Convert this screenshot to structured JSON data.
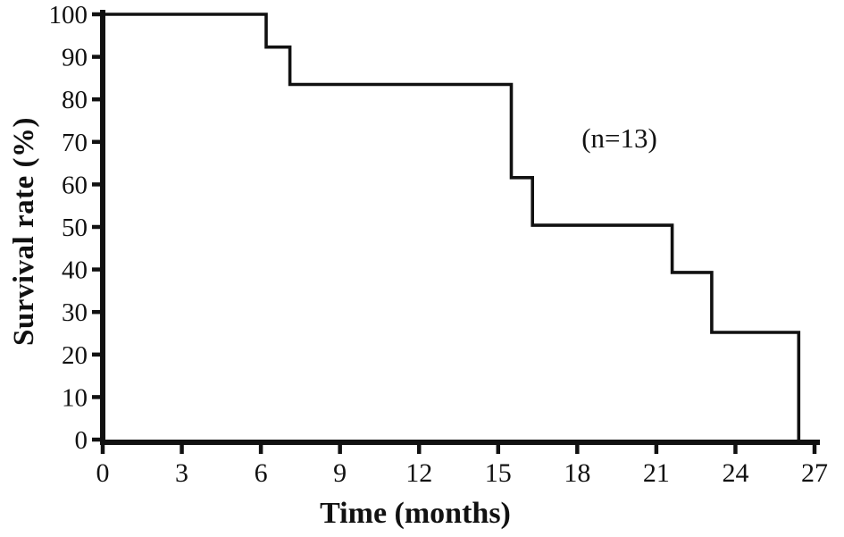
{
  "chart_data": {
    "type": "line",
    "subtype": "kaplan-meier-step-curve",
    "title": "",
    "xlabel": "Time (months)",
    "ylabel": "Survival rate (%)",
    "xlim": [
      0,
      27
    ],
    "ylim": [
      0,
      100
    ],
    "x_ticks": [
      0,
      3,
      6,
      9,
      12,
      15,
      18,
      21,
      24,
      27
    ],
    "y_ticks": [
      0,
      10,
      20,
      30,
      40,
      50,
      60,
      70,
      80,
      90,
      100
    ],
    "grid": false,
    "legend": false,
    "annotation": {
      "text": "(n=13)",
      "x": 19.6,
      "y": 71
    },
    "sample_size": 13,
    "series": [
      {
        "name": "Survival rate",
        "color": "#111111",
        "step_points": [
          [
            0,
            100
          ],
          [
            6.2,
            100
          ],
          [
            6.2,
            92.3
          ],
          [
            7.1,
            92.3
          ],
          [
            7.1,
            83.5
          ],
          [
            15.5,
            83.5
          ],
          [
            15.5,
            61.6
          ],
          [
            16.3,
            61.6
          ],
          [
            16.3,
            50.4
          ],
          [
            21.6,
            50.4
          ],
          [
            21.6,
            39.3
          ],
          [
            23.1,
            39.3
          ],
          [
            23.1,
            25.2
          ],
          [
            26.4,
            25.2
          ],
          [
            26.4,
            0
          ]
        ],
        "event_times_months": [
          6.2,
          7.1,
          15.5,
          16.3,
          21.6,
          23.1,
          26.4
        ],
        "survival_levels_percent": [
          100,
          92.3,
          83.5,
          61.6,
          50.4,
          39.3,
          25.2,
          0
        ]
      }
    ]
  },
  "colors": {
    "curve": "#111111",
    "axis": "#111111",
    "text": "#111111",
    "background": "#ffffff"
  }
}
